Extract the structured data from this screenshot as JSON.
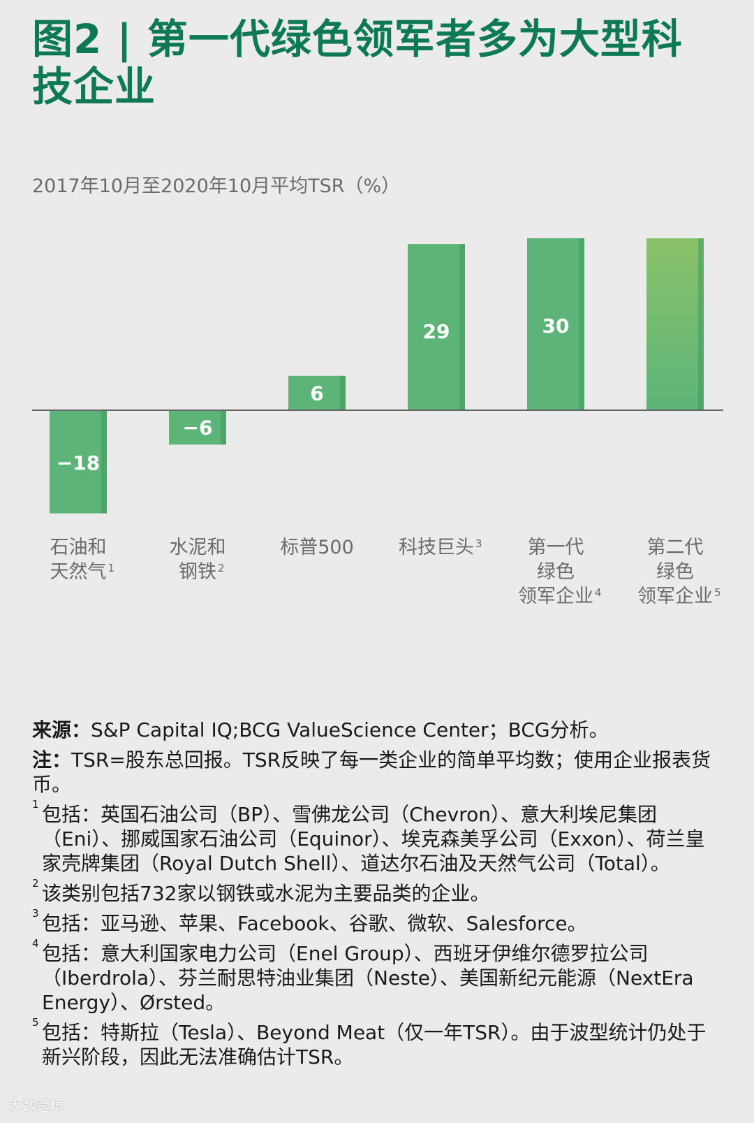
{
  "title": "图2 | 第一代绿色领军者多为大型科技企业",
  "subtitle": "2017年10月至2020年10月平均TSR（%）",
  "chart_data": {
    "type": "bar",
    "title": "图2 | 第一代绿色领军者多为大型科技企业",
    "ylabel": "2017年10月至2020年10月平均TSR（%）",
    "categories": [
      {
        "lines": [
          "石油和",
          "天然气"
        ],
        "sup": "1"
      },
      {
        "lines": [
          "水泥和",
          "钢铁"
        ],
        "sup": "2"
      },
      {
        "lines": [
          "标普500"
        ],
        "sup": ""
      },
      {
        "lines": [
          "科技巨头"
        ],
        "sup": "3"
      },
      {
        "lines": [
          "第一代",
          "绿色",
          "领军企业"
        ],
        "sup": "4"
      },
      {
        "lines": [
          "第二代",
          "绿色",
          "领军企业"
        ],
        "sup": "5"
      }
    ],
    "values": [
      -18,
      -6,
      6,
      29,
      30,
      30
    ],
    "value_labels": [
      "−18",
      "−6",
      "6",
      "29",
      "30",
      ""
    ],
    "ylim": [
      -18,
      30
    ],
    "grid": false,
    "colors": {
      "bar": "#5cb479",
      "bar_edge": "#3f9a5e",
      "gradient_top": "#8bc26a",
      "gradient_bottom": "#5cb479",
      "axis": "#666666"
    }
  },
  "footnotes": {
    "source_label": "来源：",
    "source_text": "S&P Capital IQ;BCG ValueScience Center；BCG分析。",
    "note_label": "注：",
    "note_text": "TSR=股东总回报。TSR反映了每一类企业的简单平均数；使用企业报表货币。",
    "items": [
      {
        "num": "1",
        "text": "包括：英国石油公司（BP）、雪佛龙公司（Chevron）、意大利埃尼集团（Eni）、挪威国家石油公司（Equinor）、埃克森美孚公司（Exxon）、荷兰皇家壳牌集团（Royal Dutch Shell）、道达尔石油及天然气公司（Total）。"
      },
      {
        "num": "2",
        "text": "该类别包括732家以钢铁或水泥为主要品类的企业。"
      },
      {
        "num": "3",
        "text": "包括：亚马逊、苹果、Facebook、谷歌、微软、Salesforce。"
      },
      {
        "num": "4",
        "text": "包括：意大利国家电力公司（Enel Group）、西班牙伊维尔德罗拉公司（Iberdrola）、芬兰耐思特油业集团（Neste）、美国新纪元能源（NextEra Energy）、Ørsted。"
      },
      {
        "num": "5",
        "text": "包括：特斯拉（Tesla）、Beyond Meat（仅一年TSR）。由于波型统计仍处于新兴阶段，因此无法准确估计TSR。"
      }
    ]
  },
  "watermark": "大数跨境"
}
